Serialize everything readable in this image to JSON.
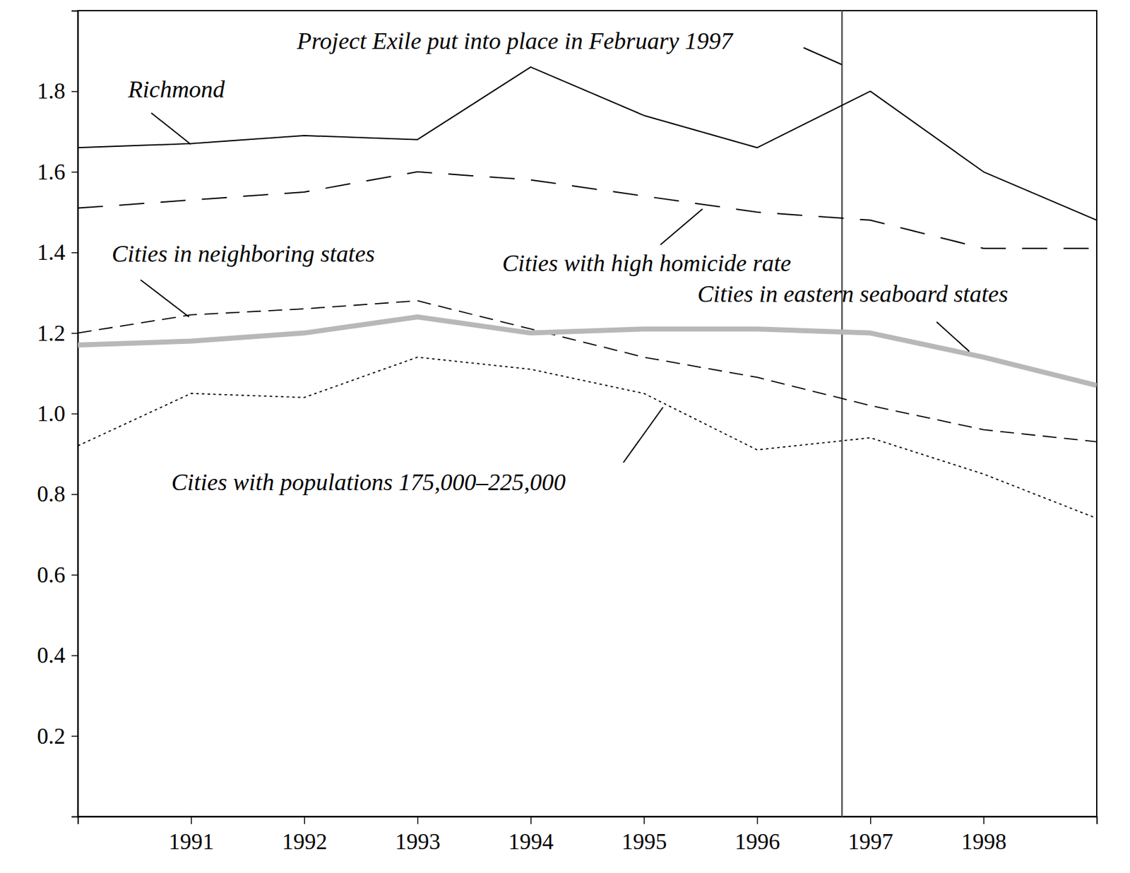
{
  "chart_data": {
    "type": "line",
    "x": [
      1990,
      1991,
      1992,
      1993,
      1994,
      1995,
      1996,
      1997,
      1998,
      1999
    ],
    "xlim": [
      1990,
      1999
    ],
    "xticks": [
      1991,
      1992,
      1993,
      1994,
      1995,
      1996,
      1997,
      1998
    ],
    "ylim": [
      0,
      2.0
    ],
    "yticks": [
      0.2,
      0.4,
      0.6,
      0.8,
      {
        "value": 1,
        "label": "1.0"
      },
      1.2,
      1.4,
      1.6,
      1.8
    ],
    "series": [
      {
        "name": "Richmond",
        "color": "#000000",
        "line_style": "solid",
        "values": [
          1.66,
          1.67,
          1.69,
          1.68,
          1.86,
          1.74,
          1.66,
          1.8,
          1.6,
          1.48
        ]
      },
      {
        "name": "Cities with high homicide rate",
        "color": "#000000",
        "line_style": "long-dash",
        "values": [
          1.51,
          1.53,
          1.55,
          1.6,
          1.58,
          1.54,
          1.5,
          1.48,
          1.41,
          1.41
        ]
      },
      {
        "name": "Cities in neighboring states",
        "color": "#000000",
        "line_style": "dashed",
        "values": [
          1.2,
          1.245,
          1.26,
          1.28,
          1.21,
          1.14,
          1.09,
          1.02,
          0.96,
          0.93
        ]
      },
      {
        "name": "Cities in eastern seaboard states",
        "color": "#b8b8b8",
        "line_style": "thick",
        "values": [
          1.17,
          1.18,
          1.2,
          1.24,
          1.2,
          1.21,
          1.21,
          1.2,
          1.14,
          1.07
        ]
      },
      {
        "name": "Cities with populations 175,000–225,000",
        "color": "#000000",
        "line_style": "dotted",
        "values": [
          0.92,
          1.05,
          1.04,
          1.14,
          1.11,
          1.05,
          0.91,
          0.94,
          0.85,
          0.74
        ]
      }
    ],
    "annotations": [
      {
        "text": "Project Exile put into place in February 1997",
        "x": 1996.75
      }
    ]
  }
}
